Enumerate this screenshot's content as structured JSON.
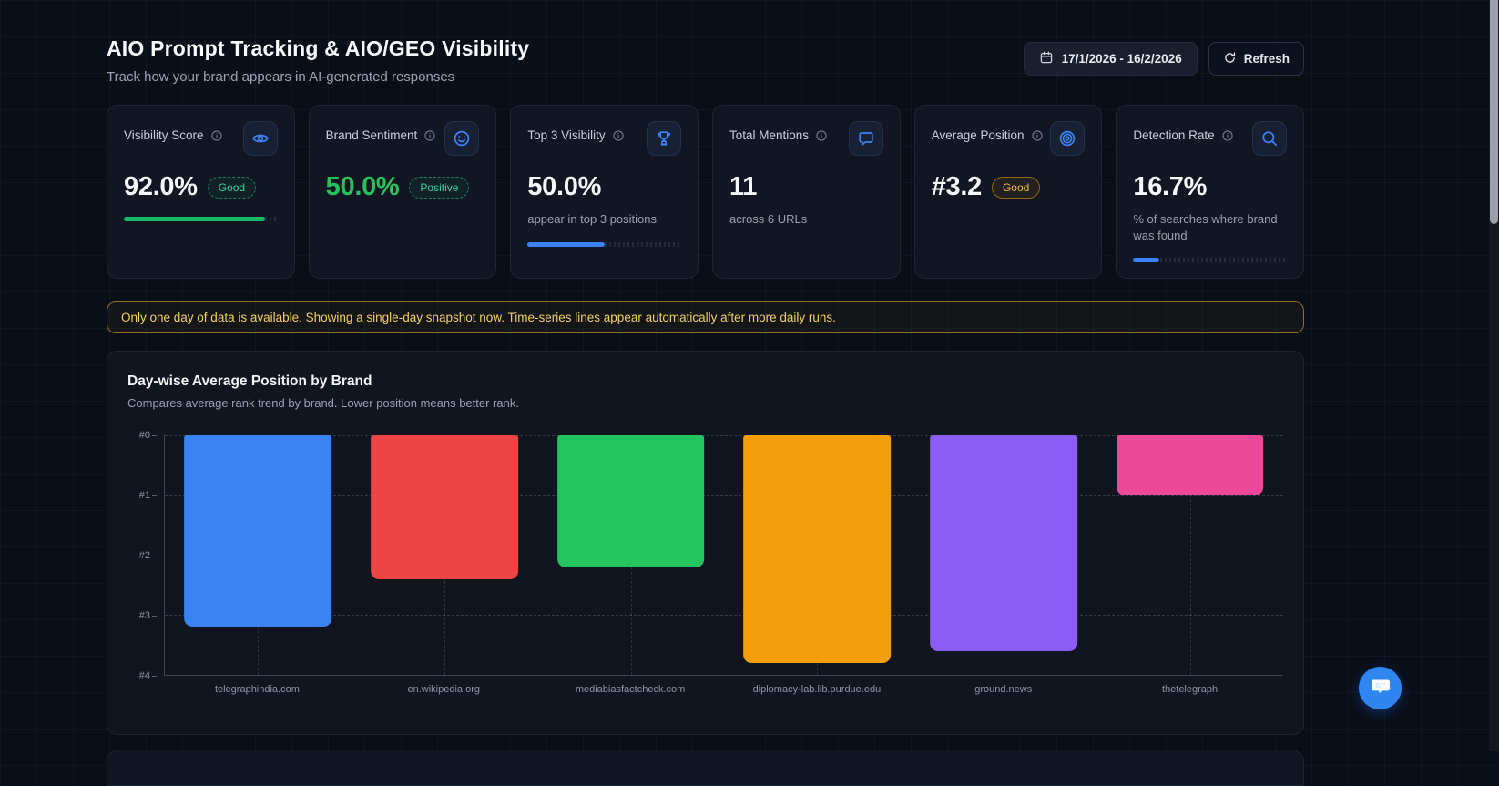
{
  "page": {
    "title": "AIO Prompt Tracking & AIO/GEO Visibility",
    "subtitle": "Track how your brand appears in AI-generated responses",
    "date_range": "17/1/2026 - 16/2/2026",
    "refresh_label": "Refresh"
  },
  "colors": {
    "accent_blue": "#3b82f6",
    "green": "#14b866",
    "amber": "#f59e0b",
    "card_bg": "#121622",
    "page_bg": "#0a0e17"
  },
  "metrics": [
    {
      "label": "Visibility Score",
      "icon": "eye-icon",
      "value": "92.0%",
      "value_color": "white",
      "badge": {
        "text": "Good",
        "color": "green"
      },
      "progress": {
        "pct": 92,
        "color": "#14b866"
      }
    },
    {
      "label": "Brand Sentiment",
      "icon": "smiley-icon",
      "value": "50.0%",
      "value_color": "green",
      "badge": {
        "text": "Positive",
        "color": "green"
      }
    },
    {
      "label": "Top 3 Visibility",
      "icon": "trophy-icon",
      "value": "50.0%",
      "value_color": "white",
      "subtitle": "appear in top 3 positions",
      "progress": {
        "pct": 50,
        "color": "#3b82f6"
      }
    },
    {
      "label": "Total Mentions",
      "icon": "chat-icon",
      "value": "11",
      "value_color": "white",
      "subtitle": "across 6 URLs"
    },
    {
      "label": "Average Position",
      "icon": "target-icon",
      "value": "#3.2",
      "value_color": "white",
      "badge": {
        "text": "Good",
        "color": "amber"
      }
    },
    {
      "label": "Detection Rate",
      "icon": "search-icon",
      "value": "16.7%",
      "value_color": "white",
      "subtitle": "% of searches where brand was found",
      "progress": {
        "pct": 17,
        "color": "#3b82f6"
      }
    }
  ],
  "notice": "Only one day of data is available. Showing a single-day snapshot now. Time-series lines appear automatically after more daily runs.",
  "chart_data": {
    "type": "bar",
    "title": "Day-wise Average Position by Brand",
    "subtitle": "Compares average rank trend by brand. Lower position means better rank.",
    "categories": [
      "telegraphindia.com",
      "en.wikipedia.org",
      "mediabiasfactcheck.com",
      "diplomacy-lab.lib.purdue.edu",
      "ground.news",
      "thetelegraph"
    ],
    "values": [
      3.2,
      2.4,
      2.2,
      3.8,
      3.6,
      1.0
    ],
    "colors": [
      "#3b82f6",
      "#ef4444",
      "#22c55e",
      "#f59e0b",
      "#8b5cf6",
      "#ec4899"
    ],
    "y_ticks": [
      "#0",
      "#1",
      "#2",
      "#3",
      "#4"
    ],
    "ylim": [
      0,
      4
    ],
    "y_inverted": true,
    "xlabel": "",
    "ylabel": "",
    "grid": true,
    "legend": false
  }
}
